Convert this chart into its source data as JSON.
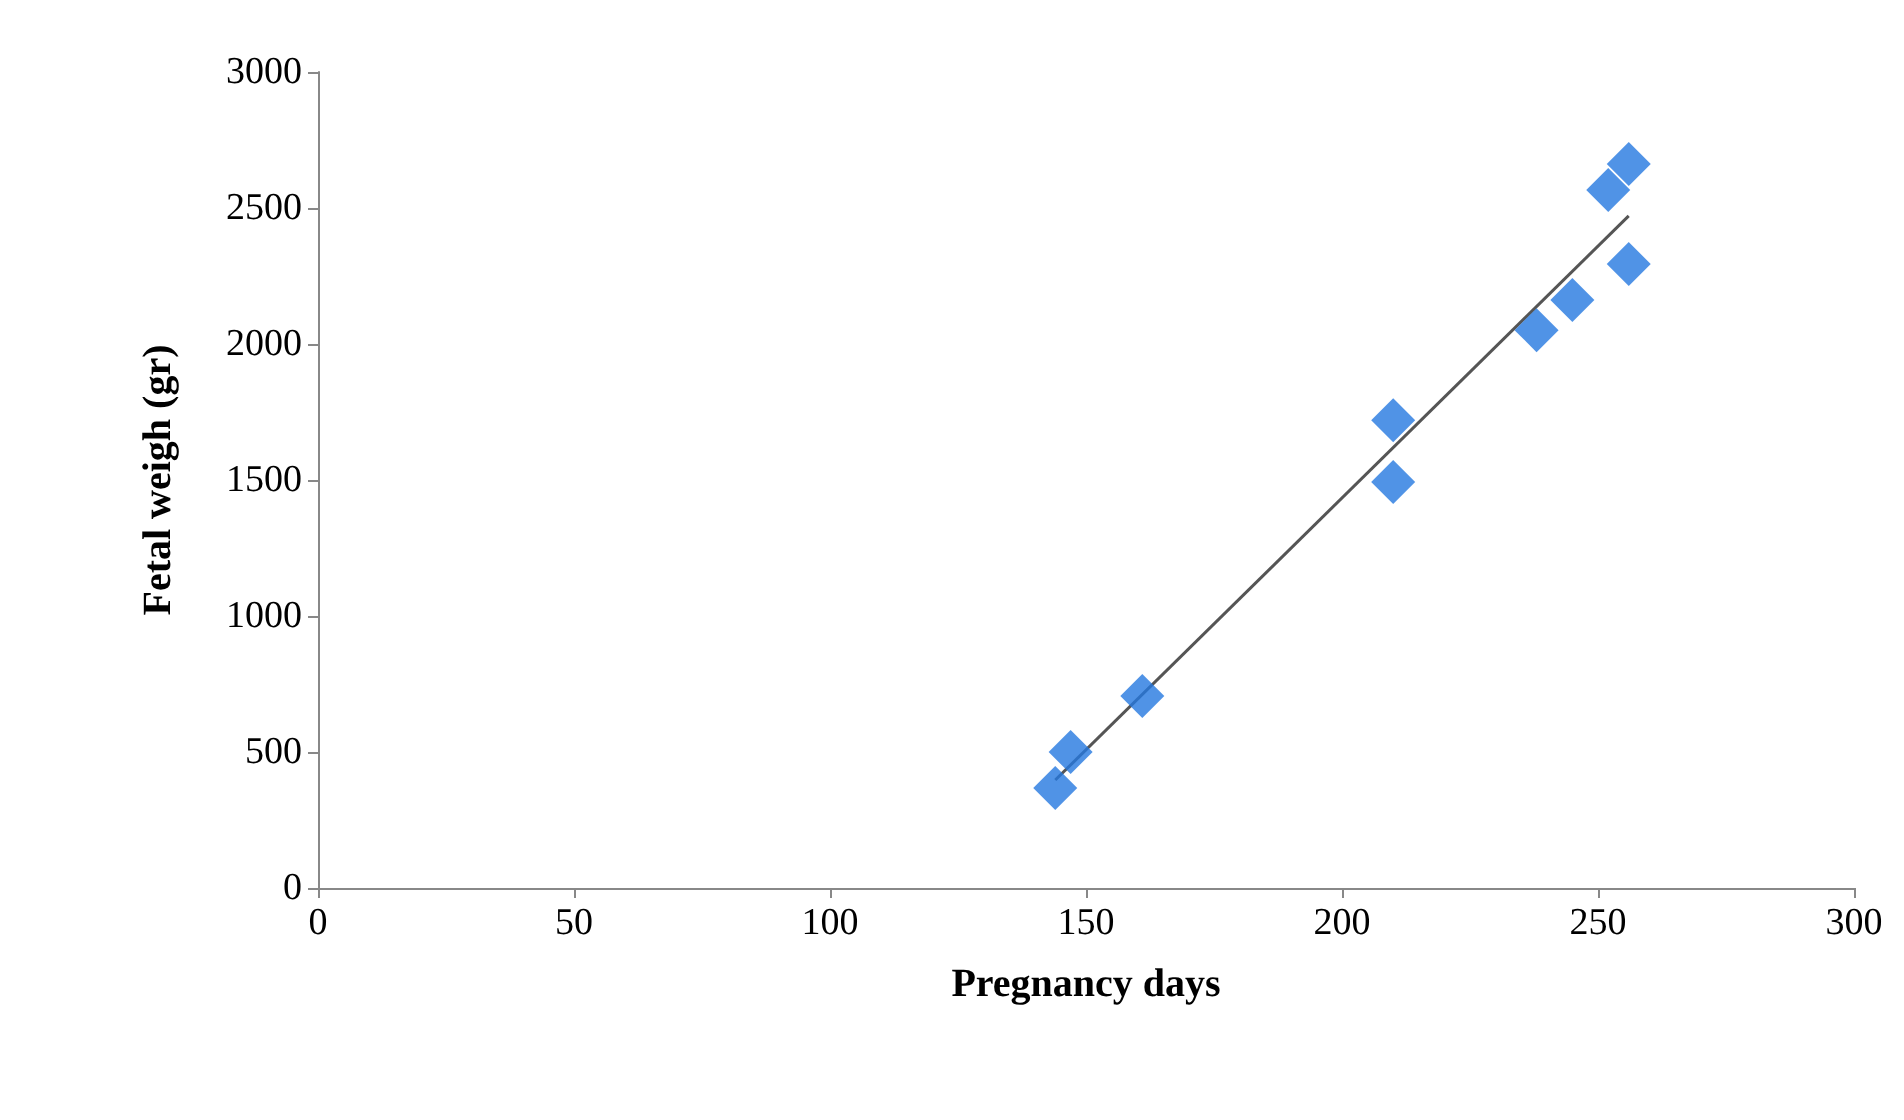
{
  "chart_data": {
    "type": "scatter",
    "xlabel": "Pregnancy days",
    "ylabel": "Fetal weigh (gr)",
    "marker": "diamond",
    "xlim": [
      0,
      300
    ],
    "xticks": [
      0,
      50,
      100,
      150,
      200,
      250,
      300
    ],
    "ylim": [
      0,
      3000
    ],
    "yticks": [
      0,
      500,
      1000,
      1500,
      2000,
      2500,
      3000
    ],
    "series": [
      {
        "color": "#2478e0",
        "x": [
          144,
          147,
          161,
          210,
          210,
          238,
          245,
          252,
          256,
          256
        ],
        "values": [
          368,
          500,
          706,
          1720,
          1493,
          2051,
          2162,
          2566,
          2662,
          2294
        ]
      },
      {
        "type": "line",
        "marker": "none",
        "color": "#555555",
        "x": [
          144,
          256
        ],
        "values": [
          397,
          2471
        ]
      }
    ]
  }
}
